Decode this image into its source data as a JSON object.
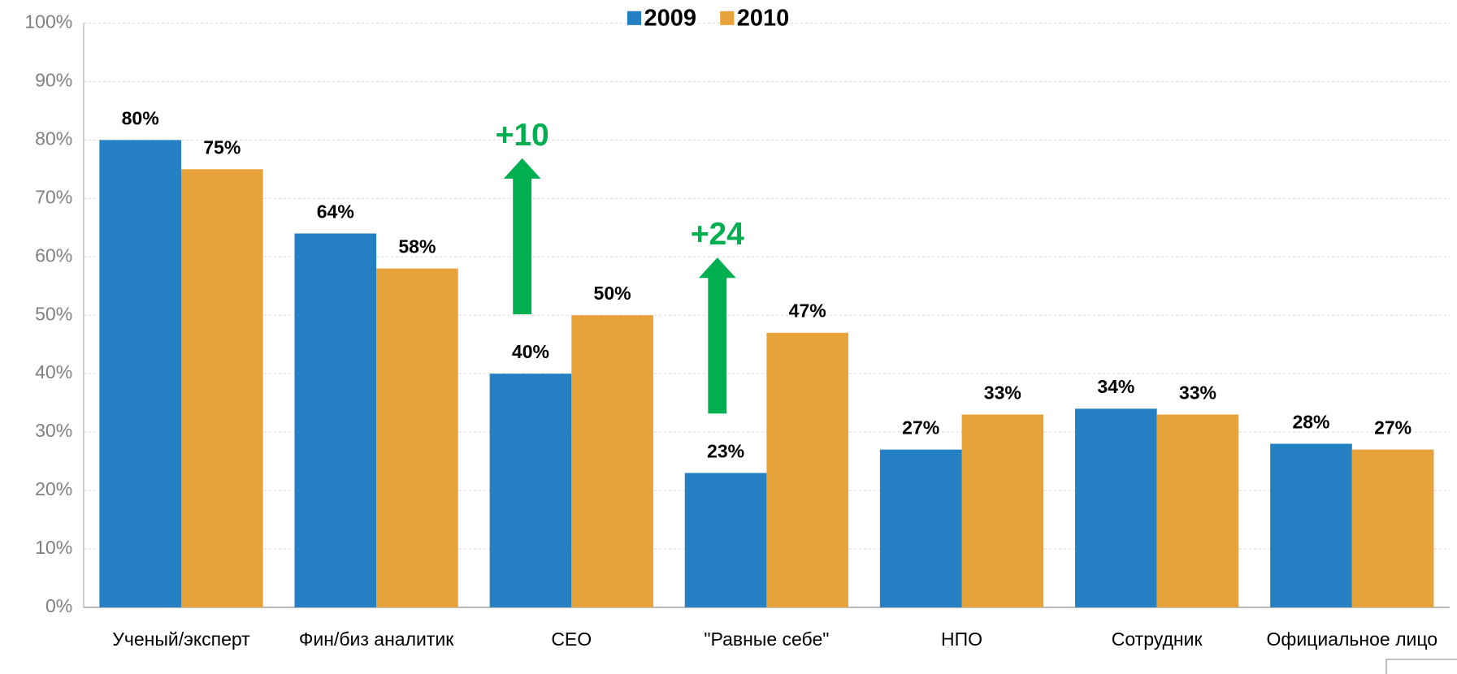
{
  "chart_data": {
    "type": "bar",
    "categories": [
      "Ученый/эксперт",
      "Фин/биз аналитик",
      "CEO",
      "\"Равные себе\"",
      "НПО",
      "Сотрудник",
      "Официальное лицо"
    ],
    "series": [
      {
        "name": "2009",
        "color": "#2580c3",
        "values": [
          80,
          64,
          40,
          23,
          27,
          34,
          28
        ],
        "value_labels": [
          "80%",
          "64%",
          "40%",
          "23%",
          "27%",
          "34%",
          "28%"
        ]
      },
      {
        "name": "2010",
        "color": "#e8a23a",
        "values": [
          75,
          58,
          50,
          47,
          33,
          33,
          27
        ],
        "value_labels": [
          "75%",
          "58%",
          "50%",
          "47%",
          "33%",
          "33%",
          "27%"
        ]
      }
    ],
    "ylim": [
      0,
      100
    ],
    "yticks": [
      {
        "value": 0,
        "label": "0%"
      },
      {
        "value": 10,
        "label": "10%"
      },
      {
        "value": 20,
        "label": "20%"
      },
      {
        "value": 30,
        "label": "30%"
      },
      {
        "value": 40,
        "label": "40%"
      },
      {
        "value": 50,
        "label": "50%"
      },
      {
        "value": 60,
        "label": "60%"
      },
      {
        "value": 70,
        "label": "70%"
      },
      {
        "value": 80,
        "label": "80%"
      },
      {
        "value": 90,
        "label": "90%"
      },
      {
        "value": 100,
        "label": "100%"
      }
    ],
    "grid": true,
    "legend": "top",
    "annotations": [
      "+10",
      "+24"
    ],
    "annotation_color": "#00b050"
  }
}
